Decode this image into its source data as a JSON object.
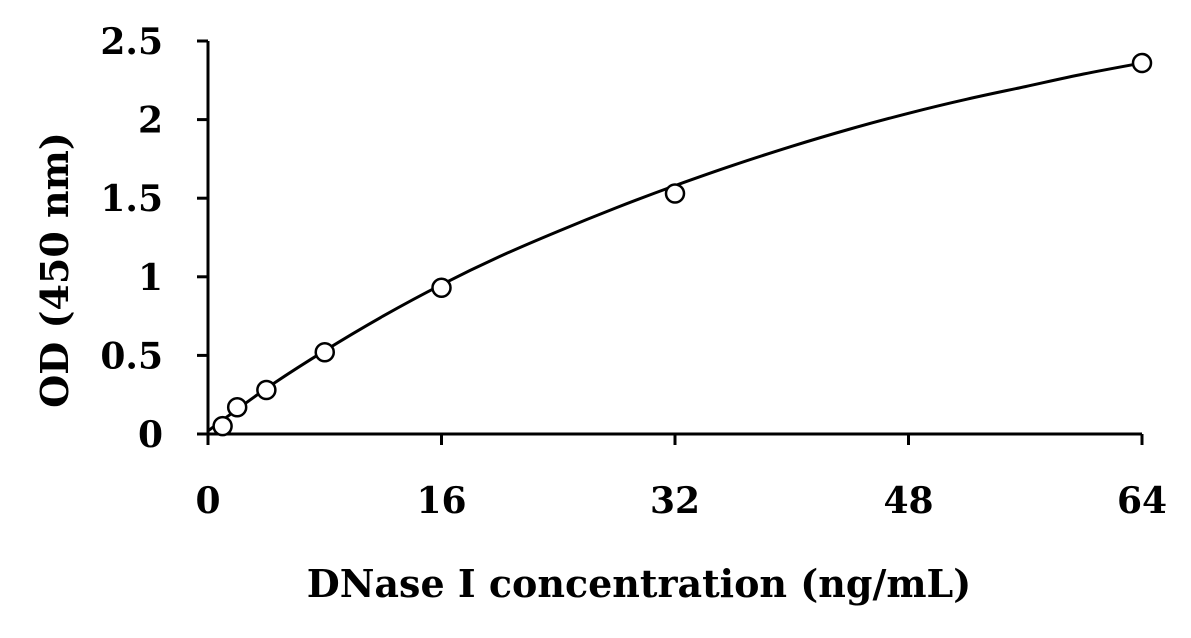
{
  "chart_data": {
    "type": "scatter",
    "title": "",
    "xlabel": "DNase I concentration (ng/mL)",
    "ylabel": "OD (450 nm)",
    "xlim": [
      0,
      64
    ],
    "ylim": [
      0,
      2.5
    ],
    "x_ticks": [
      0,
      16,
      32,
      48,
      64
    ],
    "y_ticks": [
      0,
      0.5,
      1,
      1.5,
      2,
      2.5
    ],
    "x_tick_labels": [
      "0",
      "16",
      "32",
      "48",
      "64"
    ],
    "y_tick_labels": [
      "0",
      "0.5",
      "1",
      "1.5",
      "2",
      "2.5"
    ],
    "grid": false,
    "legend": "none",
    "series": [
      {
        "marker": "open-circle",
        "x": [
          1,
          2,
          4,
          8,
          16,
          32,
          64
        ],
        "y": [
          0.05,
          0.17,
          0.28,
          0.52,
          0.93,
          1.53,
          2.36
        ]
      }
    ],
    "trendline": {
      "type": "polynomial-fit",
      "x": [
        0,
        4,
        8,
        12,
        16,
        20,
        24,
        28,
        32,
        36,
        40,
        44,
        48,
        52,
        56,
        60,
        64
      ],
      "y": [
        0.02,
        0.29,
        0.53,
        0.75,
        0.95,
        1.13,
        1.29,
        1.44,
        1.58,
        1.71,
        1.83,
        1.94,
        2.04,
        2.13,
        2.21,
        2.29,
        2.36
      ]
    },
    "colors": {
      "axis": "#000000",
      "marker": "#000000",
      "line": "#000000"
    }
  }
}
